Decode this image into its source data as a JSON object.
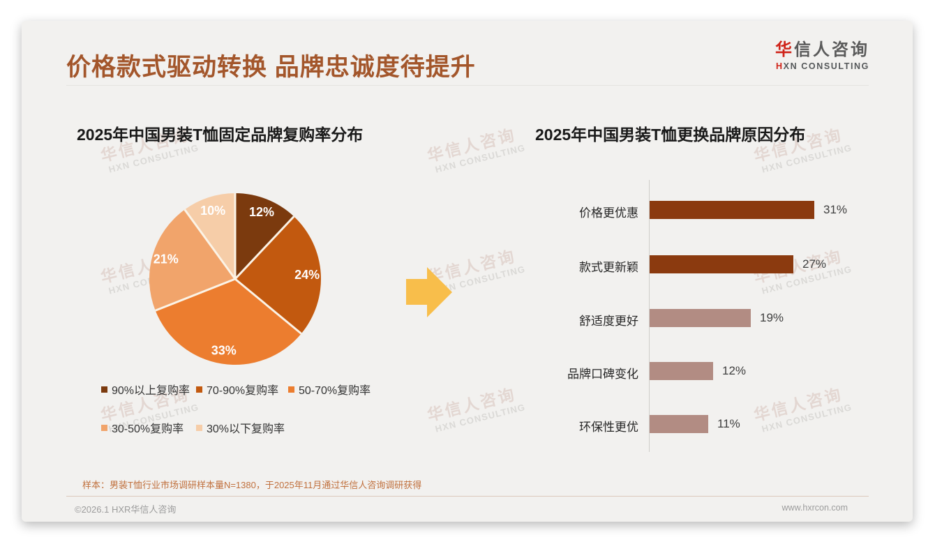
{
  "header": {
    "title": "价格款式驱动转换 品牌忠诚度待提升"
  },
  "logo": {
    "cn_first": "华",
    "cn_rest": "信人咨询",
    "en_first": "H",
    "en_rest": "XN CONSULTING"
  },
  "watermark": {
    "line1": "华信人咨询",
    "line2": "HXN CONSULTING"
  },
  "arrow_color": "#F8BE4B",
  "chart_data": [
    {
      "type": "pie",
      "title": "2025年中国男装T恤固定品牌复购率分布",
      "labels": [
        "90%以上复购率",
        "70-90%复购率",
        "50-70%复购率",
        "30-50%复购率",
        "30%以下复购率"
      ],
      "values": [
        12,
        24,
        33,
        21,
        10
      ],
      "data_labels": [
        "12%",
        "24%",
        "33%",
        "21%",
        "10%"
      ],
      "colors": [
        "#7B3A0E",
        "#C2590F",
        "#EC7D2F",
        "#F1A46B",
        "#F6CDA8"
      ],
      "start_angle_deg": 0,
      "direction": "clockwise",
      "legend_position": "bottom"
    },
    {
      "type": "bar",
      "title": "2025年中国男装T恤更换品牌原因分布",
      "orientation": "horizontal",
      "categories": [
        "价格更优惠",
        "款式更新颖",
        "舒适度更好",
        "品牌口碑变化",
        "环保性更优"
      ],
      "values": [
        31,
        27,
        19,
        12,
        11
      ],
      "value_labels": [
        "31%",
        "27%",
        "19%",
        "12%",
        "11%"
      ],
      "bar_colors": [
        "#8B3A0F",
        "#8B3A0F",
        "#B28C83",
        "#B28C83",
        "#B28C83"
      ],
      "xlim": [
        0,
        40
      ],
      "grid": false
    }
  ],
  "footer": {
    "note": "样本：男装T恤行业市场调研样本量N=1380，于2025年11月通过华信人咨询调研获得",
    "copyright": "©2026.1 HXR华信人咨询",
    "website": "www.hxrcon.com"
  }
}
